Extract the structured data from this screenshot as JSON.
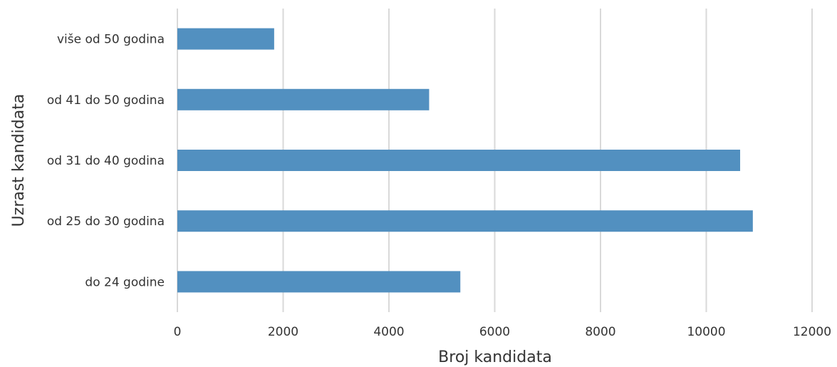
{
  "chart_data": {
    "type": "bar",
    "orientation": "horizontal",
    "title": "",
    "xlabel": "Broj kandidata",
    "ylabel": "Uzrast kandidata",
    "categories": [
      "više od 50 godina",
      "od 41 do 50 godina",
      "od 31 do 40 godina",
      "od 25 do 30 godina",
      "do 24 godine"
    ],
    "values": [
      1830,
      4760,
      10640,
      10880,
      5350
    ],
    "xlim": [
      0,
      12000
    ],
    "xticks": [
      "0",
      "2000",
      "4000",
      "6000",
      "8000",
      "10000",
      "12000"
    ],
    "grid": "vertical",
    "legend": "none",
    "bar_color": "#5290c0"
  }
}
